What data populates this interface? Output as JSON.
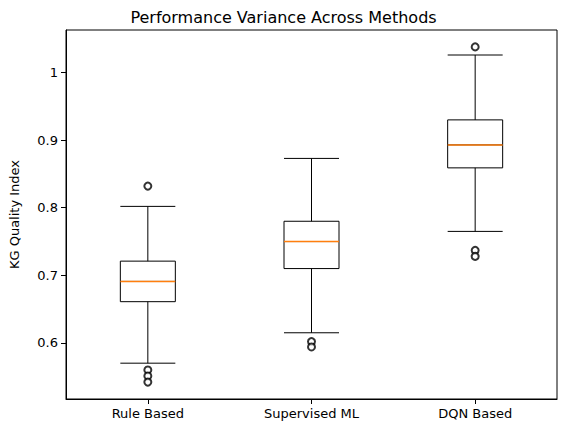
{
  "chart_data": {
    "type": "boxplot",
    "title": "Performance Variance Across Methods",
    "y_label": "KG Quality Index",
    "categories": [
      "Rule Based",
      "Supervised ML",
      "DQN Based"
    ],
    "values": [
      [
        0.57,
        0.661,
        0.691,
        0.721,
        0.802
      ],
      [
        0.615,
        0.71,
        0.75,
        0.78,
        0.873
      ],
      [
        0.765,
        0.859,
        0.893,
        0.93,
        1.026
      ]
    ],
    "outliers": [
      [
        0.832,
        0.56,
        0.551,
        0.542
      ],
      [
        0.602,
        0.594
      ],
      [
        1.038,
        0.737,
        0.728
      ]
    ],
    "color": "#000000",
    "ylim": [
      0.517,
      1.063
    ],
    "yticks": [
      0.6,
      0.7,
      0.8,
      0.9,
      1.0
    ],
    "grid": false
  }
}
